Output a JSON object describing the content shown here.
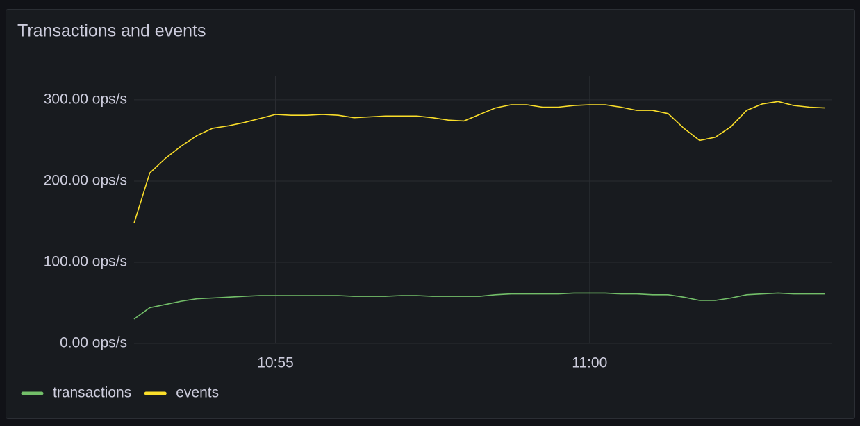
{
  "chart_data": {
    "type": "line",
    "title": "Transactions and events",
    "x": [
      652.75,
      653,
      653.25,
      653.5,
      653.75,
      654,
      654.25,
      654.5,
      654.75,
      655,
      655.25,
      655.5,
      655.75,
      656,
      656.25,
      656.5,
      656.75,
      657,
      657.25,
      657.5,
      657.75,
      658,
      658.25,
      658.5,
      658.75,
      659,
      659.25,
      659.5,
      659.75,
      660,
      660.25,
      660.5,
      660.75,
      661,
      661.25,
      661.5,
      661.75,
      662,
      662.25,
      662.5,
      662.75,
      663,
      663.25,
      663.5,
      663.75
    ],
    "series": [
      {
        "name": "transactions",
        "color": "#73bf69",
        "values": [
          30,
          44,
          48,
          52,
          55,
          56,
          57,
          58,
          59,
          59,
          59,
          59,
          59,
          59,
          58,
          58,
          58,
          59,
          59,
          58,
          58,
          58,
          58,
          60,
          61,
          61,
          61,
          61,
          62,
          62,
          62,
          61,
          61,
          60,
          60,
          57,
          53,
          53,
          56,
          60,
          61,
          62,
          61,
          61,
          61
        ]
      },
      {
        "name": "events",
        "color": "#fade2a",
        "values": [
          148,
          210,
          228,
          243,
          256,
          265,
          268,
          272,
          277,
          282,
          281,
          281,
          282,
          281,
          278,
          279,
          280,
          280,
          280,
          278,
          275,
          274,
          282,
          290,
          294,
          294,
          291,
          291,
          293,
          294,
          294,
          291,
          287,
          287,
          283,
          265,
          250,
          254,
          267,
          287,
          295,
          298,
          293,
          291,
          290
        ]
      }
    ],
    "xlim": [
      652.75,
      663.85
    ],
    "xticks": [
      {
        "value": 655,
        "label": "10:55"
      },
      {
        "value": 660,
        "label": "11:00"
      }
    ],
    "ylim": [
      0,
      329
    ],
    "yticks": [
      {
        "value": 0,
        "label": "0.00 ops/s"
      },
      {
        "value": 100,
        "label": "100.00 ops/s"
      },
      {
        "value": 200,
        "label": "200.00 ops/s"
      },
      {
        "value": 300,
        "label": "300.00 ops/s"
      }
    ],
    "grid": true
  }
}
